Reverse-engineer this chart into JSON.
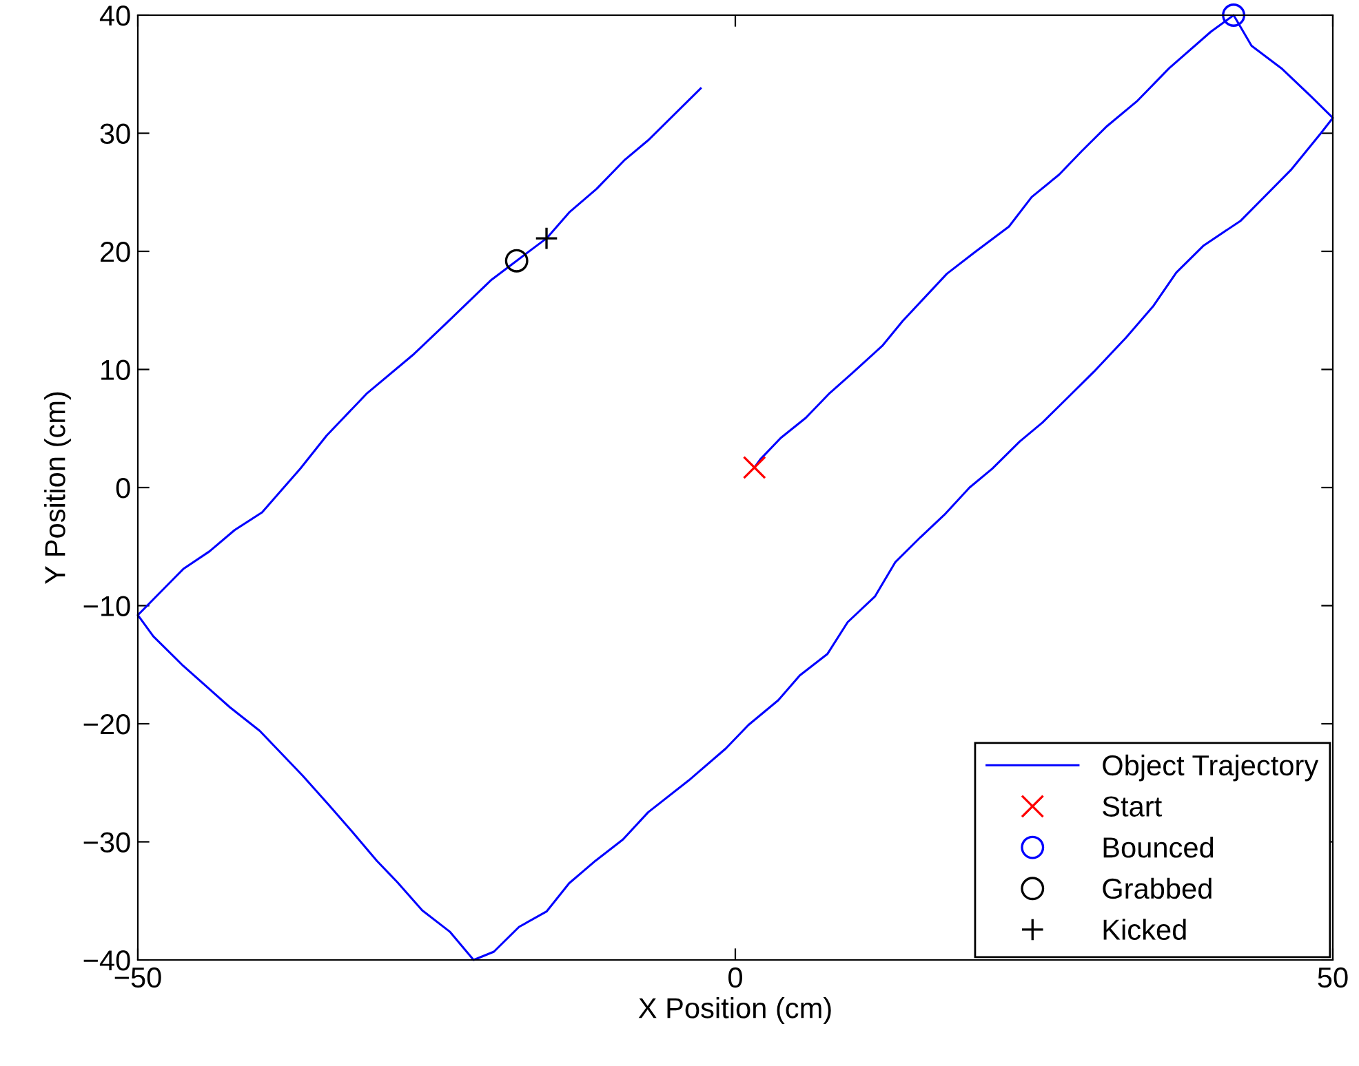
{
  "chart_data": {
    "type": "line",
    "xlabel": "X Position (cm)",
    "ylabel": "Y Position (cm)",
    "xlim": [
      -50,
      50
    ],
    "ylim": [
      -40,
      40
    ],
    "xticks": [
      -50,
      0,
      50
    ],
    "yticks": [
      -40,
      -30,
      -20,
      -10,
      0,
      10,
      20,
      30,
      40
    ],
    "grid": false,
    "legend": "bottom right",
    "series": [
      {
        "name": "Object Trajectory",
        "color": "#0000ff",
        "marker": "none",
        "line_style": "solid",
        "x": [
          1.6,
          2.1,
          3.8,
          5.9,
          7.9,
          9.8,
          12.3,
          14.0,
          17.7,
          20.0,
          22.9,
          24.8,
          27.1,
          29.0,
          31.1,
          33.6,
          36.3,
          39.8,
          41.7,
          43.2,
          45.7,
          48.2,
          50.0,
          49.0,
          46.5,
          42.3,
          39.2,
          36.9,
          35.0,
          32.7,
          30.0,
          28.0,
          25.7,
          23.8,
          21.5,
          19.6,
          17.5,
          15.5,
          13.4,
          11.7,
          9.4,
          7.7,
          5.4,
          3.6,
          1.1,
          -0.8,
          -3.9,
          -7.3,
          -9.4,
          -11.7,
          -13.9,
          -15.8,
          -18.1,
          -20.2,
          -21.9,
          -23.9,
          -26.2,
          -28.3,
          -30.0,
          -32.1,
          -34.0,
          -36.2,
          -39.8,
          -42.3,
          -46.2,
          -48.7,
          -50.0,
          -46.2,
          -44.0,
          -41.9,
          -39.6,
          -37.7,
          -36.4,
          -34.2,
          -30.8,
          -26.9,
          -24.2,
          -20.4,
          -18.3,
          -15.8,
          -13.9,
          -11.6,
          -9.3,
          -7.3,
          -2.9
        ],
        "values": [
          1.7,
          2.4,
          4.2,
          5.9,
          8.0,
          9.7,
          12.0,
          14.1,
          18.1,
          19.9,
          22.1,
          24.6,
          26.5,
          28.5,
          30.6,
          32.7,
          35.5,
          38.6,
          40.0,
          37.4,
          35.5,
          33.1,
          31.3,
          30.0,
          26.9,
          22.6,
          20.5,
          18.2,
          15.4,
          12.7,
          9.8,
          7.8,
          5.5,
          3.9,
          1.6,
          0.0,
          -2.3,
          -4.2,
          -6.3,
          -9.2,
          -11.4,
          -14.1,
          -15.9,
          -18.0,
          -20.1,
          -22.1,
          -24.8,
          -27.5,
          -29.8,
          -31.6,
          -33.5,
          -35.9,
          -37.2,
          -39.3,
          -40.0,
          -37.6,
          -35.8,
          -33.4,
          -31.6,
          -29.1,
          -26.9,
          -24.4,
          -20.6,
          -18.6,
          -15.1,
          -12.6,
          -10.8,
          -6.9,
          -5.4,
          -3.6,
          -2.1,
          0.1,
          1.6,
          4.4,
          8.0,
          11.3,
          13.9,
          17.6,
          19.2,
          21.1,
          23.3,
          25.3,
          27.7,
          29.4,
          33.8
        ]
      },
      {
        "name": "Start",
        "type": "scatter",
        "color": "#ff0000",
        "marker": "cross",
        "x": [
          1.6
        ],
        "values": [
          1.7
        ]
      },
      {
        "name": "Bounced",
        "type": "scatter",
        "color": "#0000ff",
        "marker": "circle",
        "x": [
          41.7
        ],
        "values": [
          40.0
        ]
      },
      {
        "name": "Grabbed",
        "type": "scatter",
        "color": "#000000",
        "marker": "circle",
        "x": [
          -18.3
        ],
        "values": [
          19.2
        ]
      },
      {
        "name": "Kicked",
        "type": "scatter",
        "color": "#000000",
        "marker": "plus",
        "x": [
          -15.8
        ],
        "values": [
          21.1
        ]
      }
    ]
  }
}
